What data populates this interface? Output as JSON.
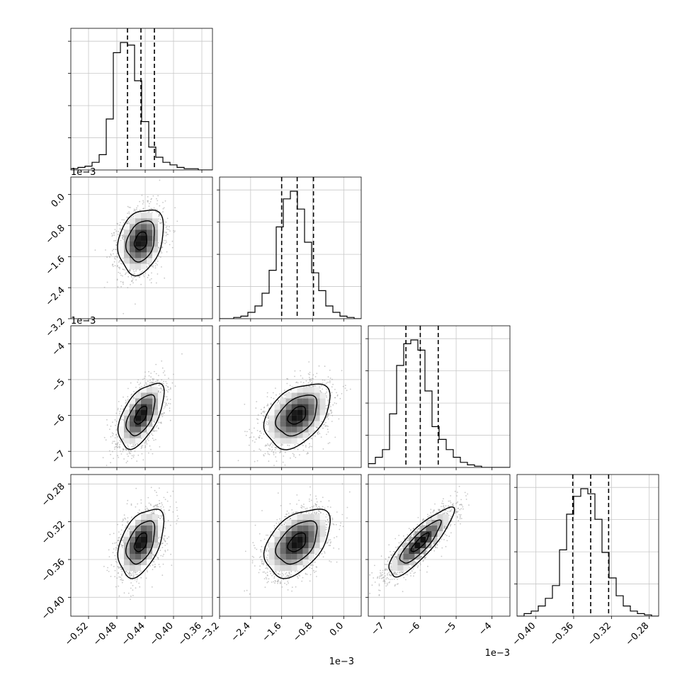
{
  "chart_data": {
    "type": "corner",
    "title": "",
    "parameters": [
      {
        "range": [
          -0.545,
          -0.345
        ],
        "ticks": [
          -0.52,
          -0.48,
          -0.44,
          -0.4,
          -0.36
        ],
        "tick_labels": [
          "−0.52",
          "−0.48",
          "−0.44",
          "−0.40",
          "−0.36"
        ],
        "offset": "",
        "mean": -0.446,
        "std": 0.016,
        "quantiles": [
          -0.465,
          -0.446,
          -0.427
        ]
      },
      {
        "range": [
          -3.2,
          0.45
        ],
        "ticks": [
          -3.2,
          -2.4,
          -1.6,
          -0.8,
          0.0
        ],
        "tick_labels": [
          "−3.2",
          "−2.4",
          "−1.6",
          "−0.8",
          "0.0"
        ],
        "offset": "1e−3",
        "mean": -1.2,
        "std": 0.42,
        "quantiles": [
          -1.6,
          -1.2,
          -0.78
        ]
      },
      {
        "range": [
          -7.45,
          -3.5
        ],
        "ticks": [
          -7,
          -6,
          -5,
          -4
        ],
        "tick_labels": [
          "−7",
          "−6",
          "−5",
          "−4"
        ],
        "offset": "1e−3",
        "mean": -6.0,
        "std": 0.45,
        "quantiles": [
          -6.4,
          -6.0,
          -5.5
        ]
      },
      {
        "range": [
          -0.42,
          -0.27
        ],
        "ticks": [
          -0.4,
          -0.36,
          -0.32,
          -0.28
        ],
        "tick_labels": [
          "−0.40",
          "−0.36",
          "−0.32",
          "−0.28"
        ],
        "offset": "",
        "mean": -0.342,
        "std": 0.018,
        "quantiles": [
          -0.361,
          -0.342,
          -0.323
        ]
      }
    ],
    "correlations": [
      [
        1.0,
        0.25,
        0.55,
        0.45
      ],
      [
        0.25,
        1.0,
        0.4,
        0.45
      ],
      [
        0.55,
        0.4,
        1.0,
        0.85
      ],
      [
        0.45,
        0.45,
        0.85,
        1.0
      ]
    ],
    "histograms": [
      [
        1,
        2,
        3,
        6,
        12,
        40,
        92,
        100,
        98,
        70,
        38,
        18,
        10,
        6,
        4,
        2,
        1,
        1,
        0,
        0
      ],
      [
        0,
        0,
        1,
        2,
        5,
        10,
        20,
        38,
        72,
        94,
        100,
        86,
        60,
        36,
        22,
        10,
        5,
        2,
        1,
        0
      ],
      [
        3,
        8,
        14,
        42,
        80,
        97,
        100,
        92,
        60,
        32,
        22,
        14,
        8,
        4,
        2,
        1,
        0,
        0,
        0,
        0
      ],
      [
        0,
        2,
        4,
        8,
        14,
        24,
        52,
        80,
        94,
        100,
        96,
        76,
        50,
        30,
        16,
        8,
        4,
        2,
        1,
        0
      ]
    ],
    "axis_offset_labels": {
      "row1_y": "1e−3",
      "row2_y": "1e−3",
      "col1_x": "1e−3",
      "col2_x": "1e−3"
    },
    "grid": true
  }
}
